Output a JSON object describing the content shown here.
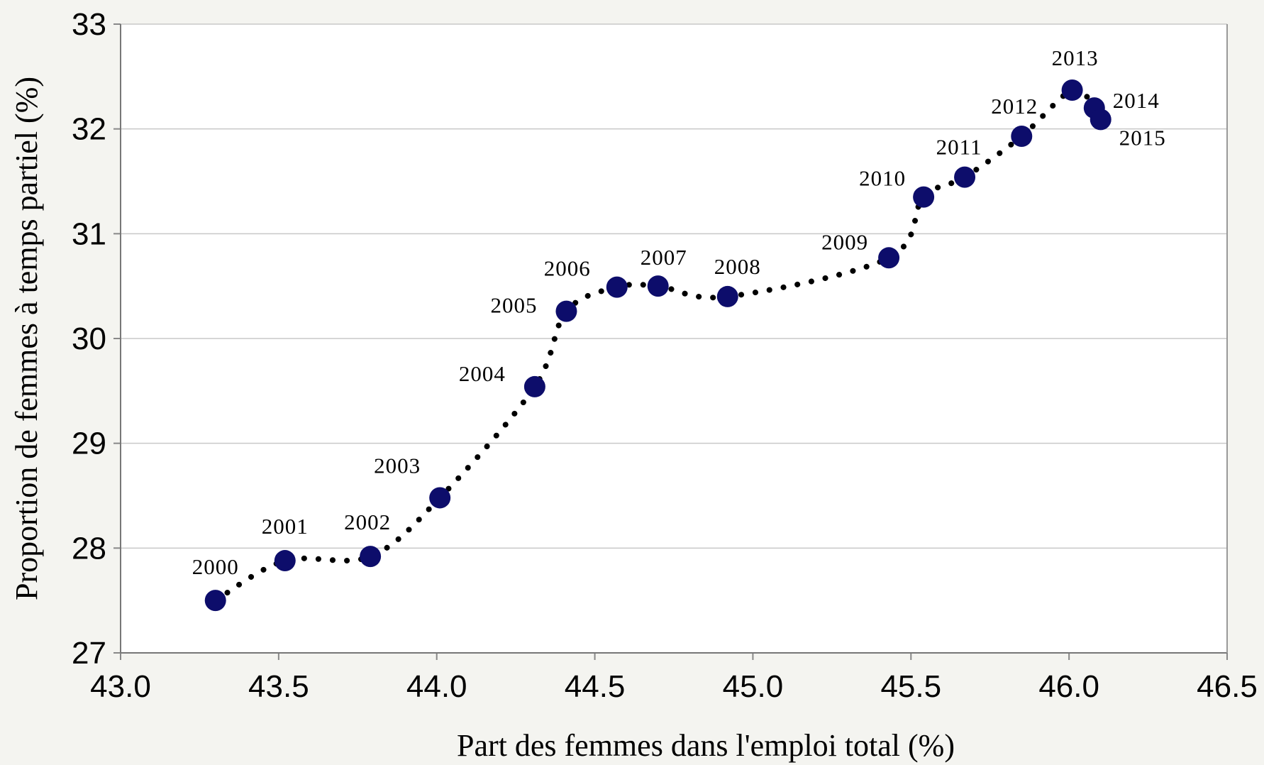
{
  "chart_data": {
    "type": "scatter",
    "xlabel": "Part des femmes dans l'emploi total  (%)",
    "ylabel": "Proportion de femmes à temps partiel (%)",
    "xlim": [
      43.0,
      46.5
    ],
    "ylim": [
      27,
      33
    ],
    "xticks": [
      "43.0",
      "43.5",
      "44.0",
      "44.5",
      "45.0",
      "45.5",
      "46.0",
      "46.5"
    ],
    "yticks": [
      "27",
      "28",
      "29",
      "30",
      "31",
      "32",
      "33"
    ],
    "grid": "horizontal",
    "point_color": "#0d0d6b",
    "line_color": "#000000",
    "line_style": "dotted",
    "points": [
      {
        "label": "2000",
        "x": 43.3,
        "y": 27.5
      },
      {
        "label": "2001",
        "x": 43.52,
        "y": 27.88
      },
      {
        "label": "2002",
        "x": 43.79,
        "y": 27.92
      },
      {
        "label": "2003",
        "x": 44.01,
        "y": 28.48
      },
      {
        "label": "2004",
        "x": 44.31,
        "y": 29.54
      },
      {
        "label": "2005",
        "x": 44.41,
        "y": 30.26
      },
      {
        "label": "2006",
        "x": 44.57,
        "y": 30.49
      },
      {
        "label": "2007",
        "x": 44.7,
        "y": 30.5
      },
      {
        "label": "2008",
        "x": 44.92,
        "y": 30.4
      },
      {
        "label": "2009",
        "x": 45.43,
        "y": 30.77
      },
      {
        "label": "2010",
        "x": 45.54,
        "y": 31.35
      },
      {
        "label": "2011",
        "x": 45.67,
        "y": 31.54
      },
      {
        "label": "2012",
        "x": 45.85,
        "y": 31.93
      },
      {
        "label": "2013",
        "x": 46.01,
        "y": 32.37
      },
      {
        "label": "2014",
        "x": 46.08,
        "y": 32.2
      },
      {
        "label": "2015",
        "x": 46.1,
        "y": 32.09
      }
    ]
  }
}
